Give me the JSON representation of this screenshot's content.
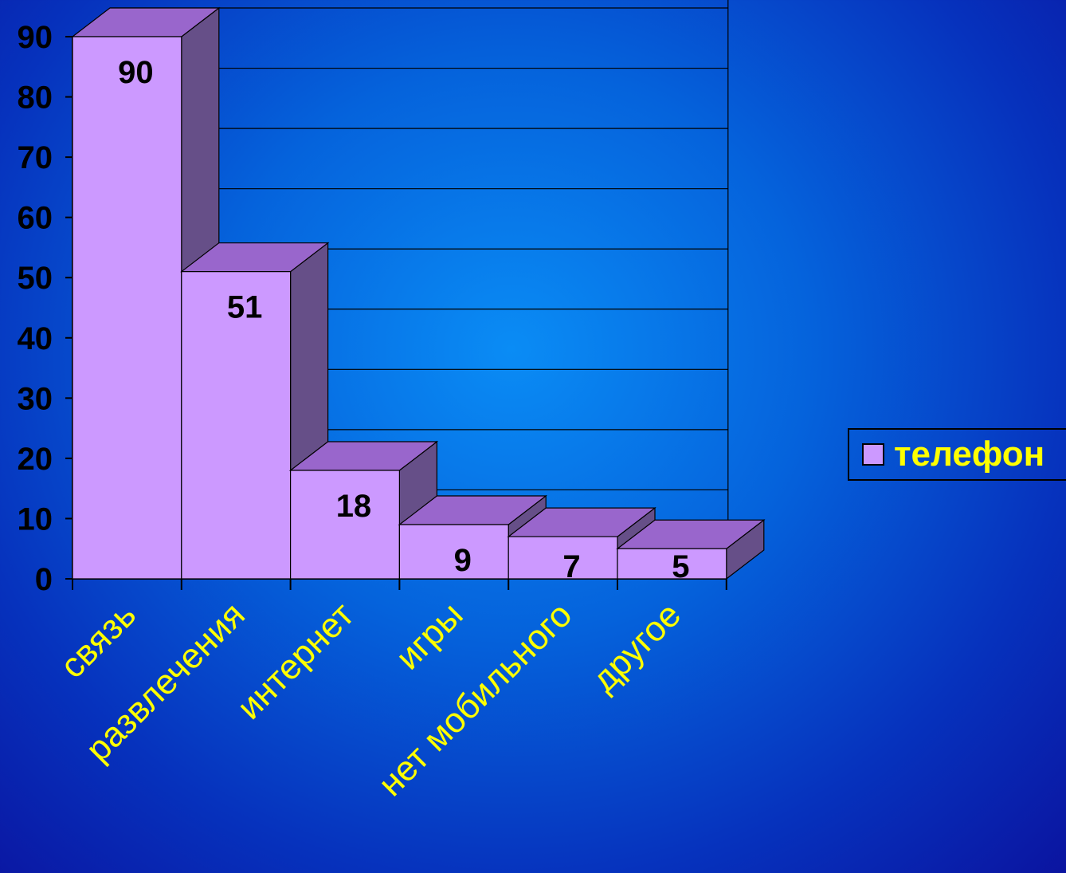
{
  "chart_data": {
    "type": "bar",
    "categories": [
      "связь",
      "развлечения",
      "интернет",
      "игры",
      "нет мобильного",
      "другое"
    ],
    "series": [
      {
        "name": "телефон",
        "values": [
          90,
          51,
          18,
          9,
          7,
          5
        ]
      }
    ],
    "data_labels": [
      "90",
      "51",
      "18",
      "9",
      "7",
      "5"
    ],
    "y_ticks": [
      "0",
      "10",
      "20",
      "30",
      "40",
      "50",
      "60",
      "70",
      "80",
      "90"
    ],
    "ylim": [
      0,
      90
    ],
    "grid": true,
    "legend_position": "right",
    "style_3d": true,
    "colors": {
      "bar_front": "#cc99ff",
      "bar_top": "#9966cc",
      "bar_side": "#664f88",
      "grid": "#000000",
      "axis_text": "#000000",
      "category_text": "#ffff00",
      "legend_text": "#ffff00"
    }
  },
  "legend": {
    "label": "телефон"
  }
}
